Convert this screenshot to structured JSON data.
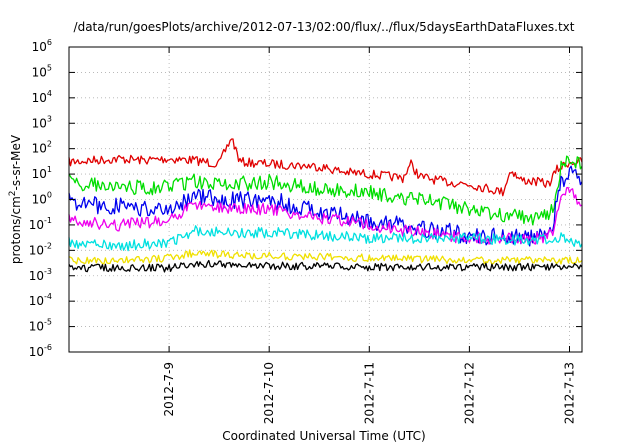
{
  "chart_data": {
    "type": "line",
    "title": "/data/run/goesPlots/archive/2012-07-13/02:00/flux/../flux/5daysEarthDataFluxes.txt",
    "xlabel": "Coordinated Universal Time (UTC)",
    "ylabel": {
      "base": "protons/cm",
      "sup": "2",
      "rest": "-s-sr-MeV"
    },
    "yscale": "log",
    "ylim": [
      1e-06,
      1000000.0
    ],
    "xlim": [
      "2012-07-08T00:00",
      "2012-07-13T03:00"
    ],
    "grid": true,
    "x_ticks": [
      {
        "date": "2012-07-09T00:00",
        "label": "2012-7-9"
      },
      {
        "date": "2012-07-10T00:00",
        "label": "2012-7-10"
      },
      {
        "date": "2012-07-11T00:00",
        "label": "2012-7-11"
      },
      {
        "date": "2012-07-12T00:00",
        "label": "2012-7-12"
      },
      {
        "date": "2012-07-13T00:00",
        "label": "2012-7-13"
      }
    ],
    "y_ticks": [
      {
        "exp": "6",
        "value": 1000000.0
      },
      {
        "exp": "5",
        "value": 100000.0
      },
      {
        "exp": "4",
        "value": 10000.0
      },
      {
        "exp": "3",
        "value": 1000.0
      },
      {
        "exp": "2",
        "value": 100.0
      },
      {
        "exp": "1",
        "value": 10.0
      },
      {
        "exp": "0",
        "value": 1.0
      },
      {
        "exp": "-1",
        "value": 0.1
      },
      {
        "exp": "-2",
        "value": 0.01
      },
      {
        "exp": "-3",
        "value": 0.001
      },
      {
        "exp": "-4",
        "value": 0.0001
      },
      {
        "exp": "-5",
        "value": 1e-05
      },
      {
        "exp": "-6",
        "value": 1e-06
      }
    ],
    "y_tick_base": "10",
    "series": [
      {
        "color": "#e00000",
        "noise": 0.06,
        "points": [
          [
            "2012-07-08T00:00",
            30
          ],
          [
            "2012-07-08T06:00",
            35
          ],
          [
            "2012-07-08T12:00",
            40
          ],
          [
            "2012-07-08T18:00",
            35
          ],
          [
            "2012-07-09T00:00",
            40
          ],
          [
            "2012-07-09T06:00",
            35
          ],
          [
            "2012-07-09T12:00",
            25
          ],
          [
            "2012-07-09T15:00",
            280
          ],
          [
            "2012-07-09T17:00",
            30
          ],
          [
            "2012-07-10T00:00",
            25
          ],
          [
            "2012-07-10T12:00",
            20
          ],
          [
            "2012-07-10T18:00",
            12
          ],
          [
            "2012-07-11T00:00",
            10
          ],
          [
            "2012-07-11T08:00",
            7
          ],
          [
            "2012-07-11T10:00",
            25
          ],
          [
            "2012-07-11T12:00",
            8
          ],
          [
            "2012-07-11T18:00",
            5
          ],
          [
            "2012-07-12T00:00",
            4
          ],
          [
            "2012-07-12T08:00",
            2
          ],
          [
            "2012-07-12T10:00",
            15
          ],
          [
            "2012-07-12T12:00",
            6
          ],
          [
            "2012-07-12T16:00",
            5
          ],
          [
            "2012-07-12T19:00",
            4
          ],
          [
            "2012-07-12T21:00",
            15
          ],
          [
            "2012-07-13T00:00",
            30
          ],
          [
            "2012-07-13T03:00",
            30
          ]
        ]
      },
      {
        "color": "#00dd00",
        "noise": 0.1,
        "points": [
          [
            "2012-07-08T00:00",
            5
          ],
          [
            "2012-07-08T12:00",
            3
          ],
          [
            "2012-07-09T00:00",
            3
          ],
          [
            "2012-07-09T06:00",
            5
          ],
          [
            "2012-07-09T12:00",
            4
          ],
          [
            "2012-07-10T00:00",
            5
          ],
          [
            "2012-07-10T12:00",
            2.5
          ],
          [
            "2012-07-11T00:00",
            2
          ],
          [
            "2012-07-11T12:00",
            1
          ],
          [
            "2012-07-12T00:00",
            0.4
          ],
          [
            "2012-07-12T12:00",
            0.2
          ],
          [
            "2012-07-12T18:00",
            0.2
          ],
          [
            "2012-07-12T20:00",
            0.5
          ],
          [
            "2012-07-12T22:00",
            20
          ],
          [
            "2012-07-13T00:00",
            35
          ],
          [
            "2012-07-13T03:00",
            20
          ]
        ]
      },
      {
        "color": "#0000ee",
        "noise": 0.12,
        "points": [
          [
            "2012-07-08T00:00",
            0.8
          ],
          [
            "2012-07-08T12:00",
            0.5
          ],
          [
            "2012-07-09T00:00",
            0.5
          ],
          [
            "2012-07-09T06:00",
            1.2
          ],
          [
            "2012-07-09T12:00",
            1
          ],
          [
            "2012-07-10T00:00",
            1
          ],
          [
            "2012-07-10T12:00",
            0.3
          ],
          [
            "2012-07-11T00:00",
            0.15
          ],
          [
            "2012-07-11T12:00",
            0.08
          ],
          [
            "2012-07-12T00:00",
            0.04
          ],
          [
            "2012-07-12T12:00",
            0.03
          ],
          [
            "2012-07-12T18:00",
            0.03
          ],
          [
            "2012-07-12T20:00",
            0.1
          ],
          [
            "2012-07-12T22:00",
            5
          ],
          [
            "2012-07-13T00:00",
            10
          ],
          [
            "2012-07-13T03:00",
            5
          ]
        ]
      },
      {
        "color": "#ee00ee",
        "noise": 0.08,
        "points": [
          [
            "2012-07-08T00:00",
            0.15
          ],
          [
            "2012-07-08T12:00",
            0.1
          ],
          [
            "2012-07-09T00:00",
            0.15
          ],
          [
            "2012-07-09T06:00",
            0.6
          ],
          [
            "2012-07-09T12:00",
            0.5
          ],
          [
            "2012-07-10T00:00",
            0.4
          ],
          [
            "2012-07-10T12:00",
            0.2
          ],
          [
            "2012-07-11T00:00",
            0.1
          ],
          [
            "2012-07-11T12:00",
            0.05
          ],
          [
            "2012-07-12T00:00",
            0.03
          ],
          [
            "2012-07-12T12:00",
            0.03
          ],
          [
            "2012-07-12T18:00",
            0.03
          ],
          [
            "2012-07-12T20:00",
            0.05
          ],
          [
            "2012-07-12T22:00",
            1
          ],
          [
            "2012-07-13T00:00",
            2.5
          ],
          [
            "2012-07-13T03:00",
            0.6
          ]
        ]
      },
      {
        "color": "#00e0e0",
        "noise": 0.07,
        "points": [
          [
            "2012-07-08T00:00",
            0.02
          ],
          [
            "2012-07-08T12:00",
            0.015
          ],
          [
            "2012-07-09T00:00",
            0.02
          ],
          [
            "2012-07-09T06:00",
            0.06
          ],
          [
            "2012-07-09T12:00",
            0.05
          ],
          [
            "2012-07-10T00:00",
            0.05
          ],
          [
            "2012-07-10T12:00",
            0.04
          ],
          [
            "2012-07-11T00:00",
            0.03
          ],
          [
            "2012-07-11T12:00",
            0.03
          ],
          [
            "2012-07-12T00:00",
            0.03
          ],
          [
            "2012-07-12T12:00",
            0.025
          ],
          [
            "2012-07-12T22:00",
            0.03
          ],
          [
            "2012-07-13T00:00",
            0.025
          ],
          [
            "2012-07-13T03:00",
            0.018
          ]
        ]
      },
      {
        "color": "#f0e000",
        "noise": 0.05,
        "points": [
          [
            "2012-07-08T00:00",
            0.004
          ],
          [
            "2012-07-08T12:00",
            0.004
          ],
          [
            "2012-07-09T00:00",
            0.005
          ],
          [
            "2012-07-09T06:00",
            0.008
          ],
          [
            "2012-07-09T12:00",
            0.007
          ],
          [
            "2012-07-10T00:00",
            0.006
          ],
          [
            "2012-07-11T00:00",
            0.005
          ],
          [
            "2012-07-12T00:00",
            0.004
          ],
          [
            "2012-07-13T03:00",
            0.004
          ]
        ]
      },
      {
        "color": "#000000",
        "noise": 0.05,
        "points": [
          [
            "2012-07-08T00:00",
            0.002
          ],
          [
            "2012-07-08T12:00",
            0.002
          ],
          [
            "2012-07-09T00:00",
            0.002
          ],
          [
            "2012-07-09T06:00",
            0.003
          ],
          [
            "2012-07-09T12:00",
            0.0028
          ],
          [
            "2012-07-10T00:00",
            0.0025
          ],
          [
            "2012-07-11T00:00",
            0.0022
          ],
          [
            "2012-07-12T00:00",
            0.0022
          ],
          [
            "2012-07-13T03:00",
            0.0022
          ]
        ]
      }
    ]
  }
}
